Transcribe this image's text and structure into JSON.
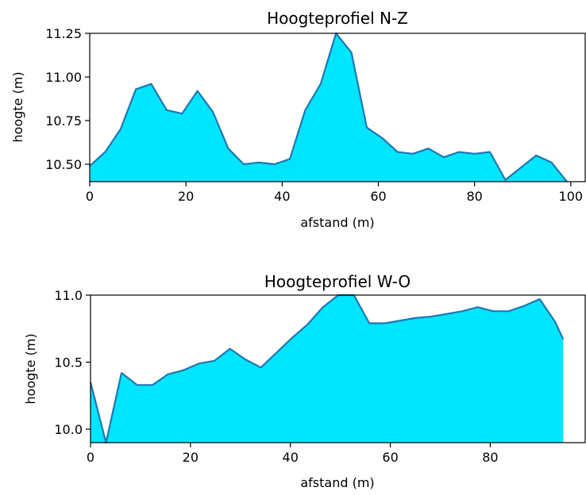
{
  "chart_data": [
    {
      "type": "area",
      "title": "Hoogteprofiel N-Z",
      "xlabel": "afstand (m)",
      "ylabel": "hoogte (m)",
      "xlim": [
        0,
        103
      ],
      "ylim": [
        10.4,
        11.25
      ],
      "xticks": [
        0,
        20,
        40,
        60,
        80,
        100
      ],
      "yticks": [
        10.5,
        10.75,
        11.0,
        11.25
      ],
      "ytick_labels": [
        "10.50",
        "10.75",
        "11.00",
        "11.25"
      ],
      "fill_color": "#00e5ff",
      "line_color": "#1f77b4",
      "series": [
        {
          "x": [
            0,
            3.2,
            6.4,
            9.6,
            12.8,
            16,
            19.2,
            22.4,
            25.6,
            28.8,
            32,
            35.2,
            38.4,
            41.6,
            44.8,
            48,
            51.2,
            54.4,
            57.6,
            60.8,
            64,
            67.2,
            70.4,
            73.6,
            76.8,
            80,
            83.2,
            86.4,
            89.6,
            92.8,
            96,
            99.2
          ],
          "y": [
            10.49,
            10.57,
            10.7,
            10.93,
            10.96,
            10.81,
            10.79,
            10.92,
            10.8,
            10.59,
            10.5,
            10.51,
            10.5,
            10.53,
            10.81,
            10.96,
            11.26,
            11.14,
            10.71,
            10.65,
            10.57,
            10.56,
            10.59,
            10.54,
            10.57,
            10.56,
            10.57,
            10.41,
            10.48,
            10.55,
            10.51,
            10.4
          ]
        }
      ]
    },
    {
      "type": "area",
      "title": "Hoogteprofiel W-O",
      "xlabel": "afstand (m)",
      "ylabel": "hoogte (m)",
      "xlim": [
        0,
        99
      ],
      "ylim": [
        9.9,
        11.0
      ],
      "xticks": [
        0,
        20,
        40,
        60,
        80
      ],
      "yticks": [
        10.0,
        10.5,
        11.0
      ],
      "ytick_labels": [
        "10.0",
        "10.5",
        "11.0"
      ],
      "fill_color": "#00e5ff",
      "line_color": "#1f77b4",
      "series": [
        {
          "x": [
            0,
            3.1,
            6.2,
            9.3,
            12.4,
            15.5,
            18.6,
            21.7,
            24.8,
            27.9,
            31,
            34.1,
            37.2,
            40.3,
            43.4,
            46.5,
            49.6,
            52.7,
            55.8,
            58.9,
            62,
            65.1,
            68.2,
            71.3,
            74.4,
            77.5,
            80.6,
            83.7,
            86.8,
            89.9,
            93,
            94.6
          ],
          "y": [
            10.35,
            9.9,
            10.42,
            10.33,
            10.33,
            10.41,
            10.44,
            10.49,
            10.51,
            10.6,
            10.52,
            10.46,
            10.57,
            10.68,
            10.78,
            10.91,
            11.01,
            11.01,
            10.79,
            10.79,
            10.81,
            10.83,
            10.84,
            10.86,
            10.88,
            10.91,
            10.88,
            10.88,
            10.92,
            10.97,
            10.8,
            10.67
          ]
        }
      ]
    }
  ]
}
